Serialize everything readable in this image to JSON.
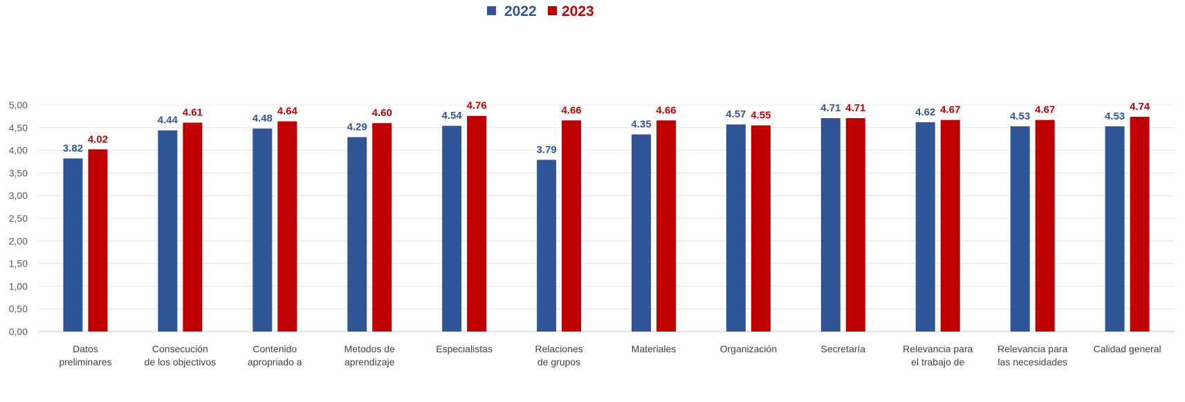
{
  "chart_data": {
    "type": "bar",
    "title": "",
    "xlabel": "",
    "ylabel": "",
    "ylim": [
      0,
      5
    ],
    "yticks": [
      "0,00",
      "0,50",
      "1,00",
      "1,50",
      "2,00",
      "2,50",
      "3,00",
      "3,50",
      "4,00",
      "4,50",
      "5,00"
    ],
    "ytick_values": [
      0,
      0.5,
      1,
      1.5,
      2,
      2.5,
      3,
      3.5,
      4,
      4.5,
      5
    ],
    "grid": true,
    "legend_position": "top-center",
    "categories": [
      [
        "Datos",
        "preliminares"
      ],
      [
        "Consecución",
        "de los objectivos"
      ],
      [
        "Contenido",
        "apropriado a"
      ],
      [
        "Metodos de",
        "aprendizaje"
      ],
      [
        "Especialistas"
      ],
      [
        "Relaciones",
        "de grupos"
      ],
      [
        "Materiales"
      ],
      [
        "Organización"
      ],
      [
        "Secretaría"
      ],
      [
        "Relevancia para",
        "el trabajo de"
      ],
      [
        "Relevancia para",
        "las necesidades"
      ],
      [
        "Calidad general"
      ]
    ],
    "series": [
      {
        "name": "2022",
        "color": "#2F5597",
        "values": [
          3.82,
          4.44,
          4.48,
          4.29,
          4.54,
          3.79,
          4.35,
          4.57,
          4.71,
          4.62,
          4.53,
          4.53
        ],
        "labels": [
          "3.82",
          "4.44",
          "4.48",
          "4.29",
          "4.54",
          "3.79",
          "4.35",
          "4.57",
          "4.71",
          "4.62",
          "4.53",
          "4.53"
        ]
      },
      {
        "name": "2023",
        "color": "#C00000",
        "values": [
          4.02,
          4.61,
          4.64,
          4.6,
          4.76,
          4.66,
          4.66,
          4.55,
          4.71,
          4.67,
          4.67,
          4.74
        ],
        "labels": [
          "4.02",
          "4.61",
          "4.64",
          "4.60",
          "4.76",
          "4.66",
          "4.66",
          "4.55",
          "4.71",
          "4.67",
          "4.67",
          "4.74"
        ]
      }
    ]
  }
}
